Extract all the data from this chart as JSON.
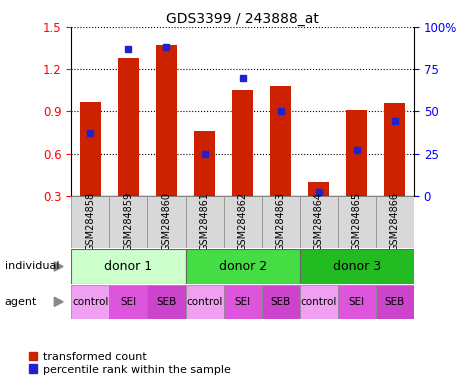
{
  "title": "GDS3399 / 243888_at",
  "samples": [
    "GSM284858",
    "GSM284859",
    "GSM284860",
    "GSM284861",
    "GSM284862",
    "GSM284863",
    "GSM284864",
    "GSM284865",
    "GSM284866"
  ],
  "bar_values": [
    0.97,
    1.28,
    1.37,
    0.76,
    1.05,
    1.08,
    0.4,
    0.91,
    0.96
  ],
  "percentile_values": [
    37,
    87,
    88,
    25,
    70,
    50,
    2,
    27,
    44
  ],
  "ylim": [
    0.3,
    1.5
  ],
  "y_left_ticks": [
    0.3,
    0.6,
    0.9,
    1.2,
    1.5
  ],
  "y_right_ticks": [
    0,
    25,
    50,
    75,
    100
  ],
  "bar_color": "#cc2200",
  "dot_color": "#2222cc",
  "bar_width": 0.55,
  "donors": [
    {
      "label": "donor 1",
      "span": [
        0,
        3
      ],
      "color": "#ccffcc"
    },
    {
      "label": "donor 2",
      "span": [
        3,
        6
      ],
      "color": "#44dd44"
    },
    {
      "label": "donor 3",
      "span": [
        6,
        9
      ],
      "color": "#22bb22"
    }
  ],
  "agents": [
    "control",
    "SEI",
    "SEB",
    "control",
    "SEI",
    "SEB",
    "control",
    "SEI",
    "SEB"
  ],
  "agent_colors_map": {
    "control": "#f0a0f0",
    "SEI": "#dd55dd",
    "SEB": "#cc44cc"
  },
  "legend_items": [
    {
      "label": "transformed count",
      "color": "#cc2200"
    },
    {
      "label": "percentile rank within the sample",
      "color": "#2222cc"
    }
  ],
  "background_color": "#ffffff"
}
